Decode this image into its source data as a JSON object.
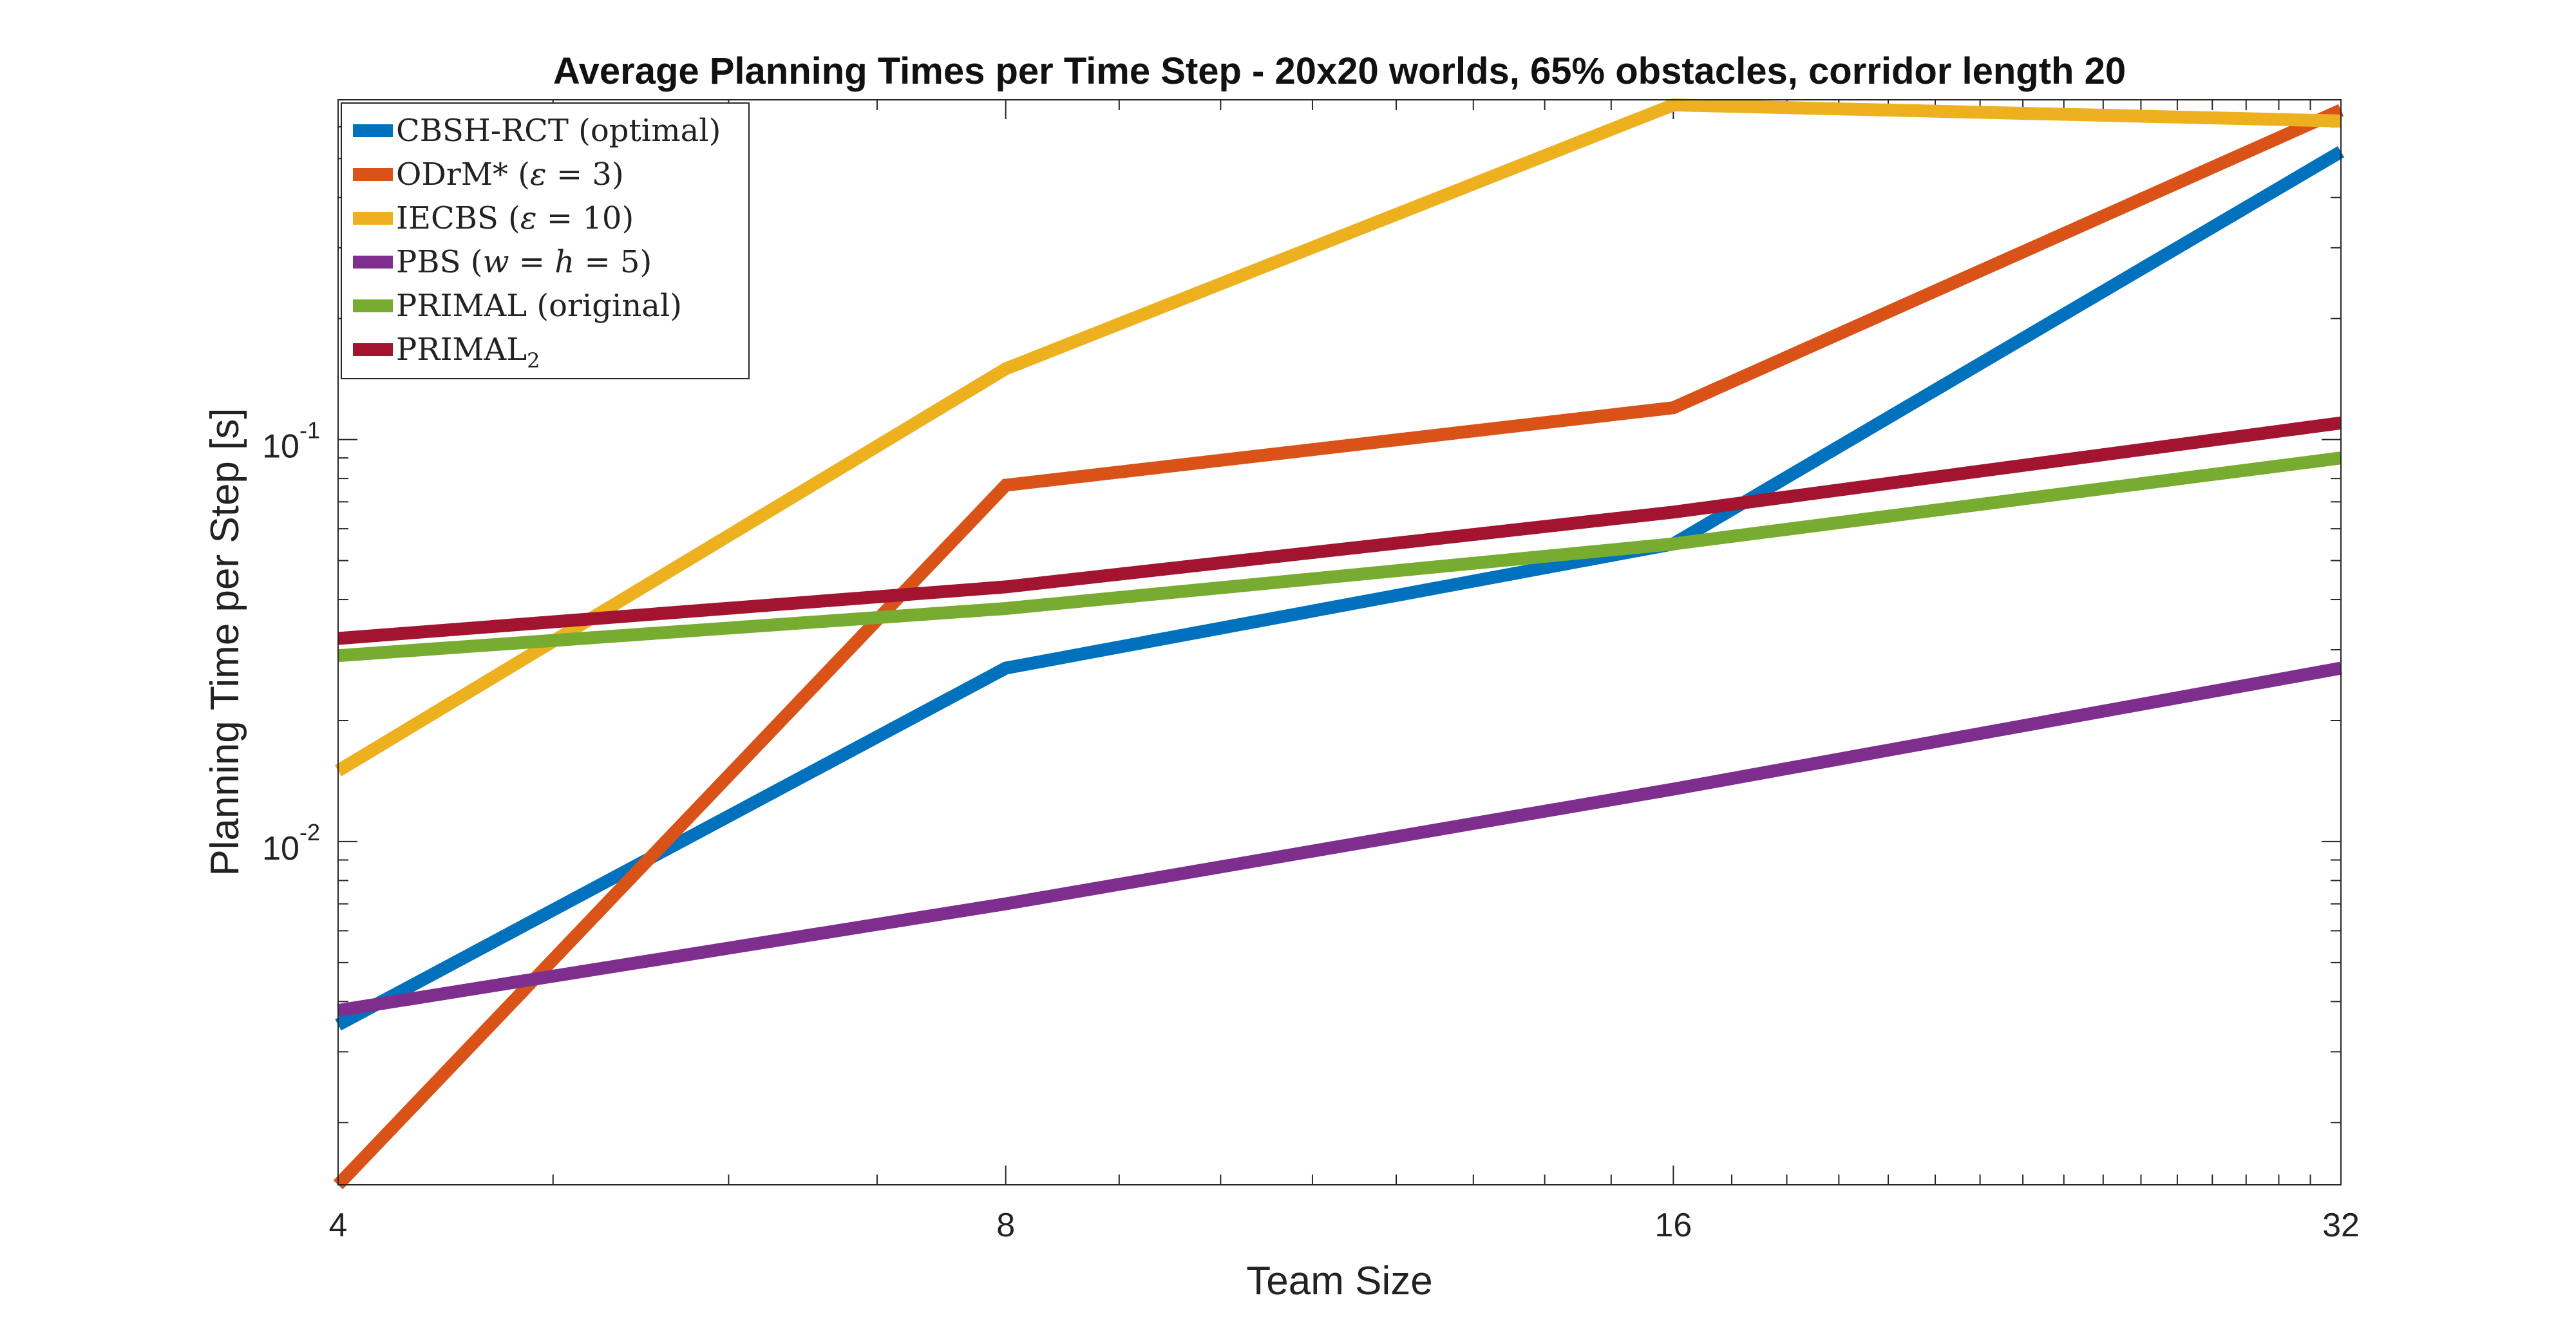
{
  "chart_data": {
    "type": "line",
    "title": "Average Planning Times per Time Step - 20x20 worlds, 65% obstacles, corridor length 20",
    "xlabel": "Team Size",
    "ylabel": "Planning Time per Step [s]",
    "x_scale": "log2",
    "y_scale": "log10",
    "x": [
      4,
      8,
      16,
      32
    ],
    "xlim": [
      4,
      32
    ],
    "ylim": [
      0.0014,
      0.7
    ],
    "x_ticks": [
      "4",
      "8",
      "16",
      "32"
    ],
    "y_ticks": [
      {
        "base": "10",
        "exp": "-2",
        "value": 0.01
      },
      {
        "base": "10",
        "exp": "-1",
        "value": 0.1
      }
    ],
    "grid": false,
    "legend_position": "top-left",
    "series": [
      {
        "name": "CBSH-RCT (optimal)",
        "color": "#0072BD",
        "values": [
          0.0035,
          0.027,
          0.055,
          0.52
        ]
      },
      {
        "name": "ODrM* (ε = 3)",
        "color": "#D95319",
        "values": [
          0.0014,
          0.077,
          0.12,
          0.66
        ]
      },
      {
        "name": "IECBS (ε = 10)",
        "color": "#EDB120",
        "values": [
          0.015,
          0.15,
          0.68,
          0.62
        ]
      },
      {
        "name": "PBS (w = h = 5)",
        "color": "#7E2F8E",
        "values": [
          0.0038,
          0.007,
          0.0135,
          0.027
        ]
      },
      {
        "name": "PRIMAL (original)",
        "color": "#77AC30",
        "values": [
          0.029,
          0.038,
          0.055,
          0.09
        ]
      },
      {
        "name": "PRIMAL2",
        "color": "#A2142F",
        "values": [
          0.032,
          0.043,
          0.066,
          0.11
        ]
      }
    ]
  }
}
